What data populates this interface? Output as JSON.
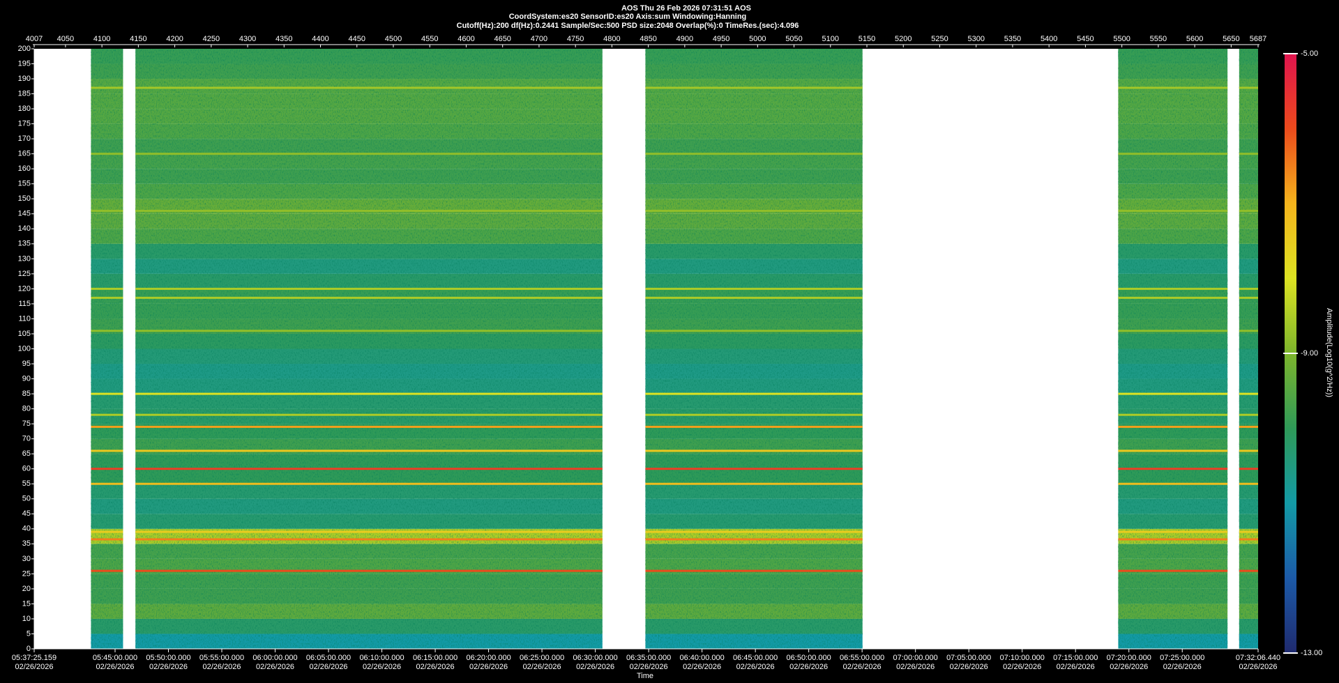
{
  "chart_data": {
    "type": "spectrogram",
    "title": "AOS  Thu 26 Feb 2026 07:31:51  AOS",
    "subtitle_lines": [
      "CoordSystem:es20    SensorID:es20    Axis:sum    Windowing:Hanning",
      "Cutoff(Hz):200      df(Hz):0.2441      Sample/Sec:500      PSD size:2048      Overlap(%):0      TimeRes.(sec):4.096"
    ],
    "x_label": "Time",
    "colorbar_label": "Amplitude(Log10(g^2/Hz))",
    "xlim": [
      4007,
      5687
    ],
    "xticks": [
      4007,
      4050,
      4100,
      4150,
      4200,
      4250,
      4300,
      4350,
      4400,
      4450,
      4500,
      4550,
      4600,
      4650,
      4700,
      4750,
      4800,
      4850,
      4900,
      4950,
      5000,
      5050,
      5100,
      5150,
      5200,
      5250,
      5300,
      5350,
      5400,
      5450,
      5500,
      5550,
      5600,
      5650,
      5687
    ],
    "time_ticks": [
      {
        "value": 4007,
        "label": "05:37:25.159"
      },
      {
        "value": 4118.05,
        "label": "05:45:00.000"
      },
      {
        "value": 4191.29,
        "label": "05:50:00.000"
      },
      {
        "value": 4264.53,
        "label": "05:55:00.000"
      },
      {
        "value": 4337.77,
        "label": "06:00:00.000"
      },
      {
        "value": 4411.01,
        "label": "06:05:00.000"
      },
      {
        "value": 4484.26,
        "label": "06:10:00.000"
      },
      {
        "value": 4557.5,
        "label": "06:15:00.000"
      },
      {
        "value": 4630.74,
        "label": "06:20:00.000"
      },
      {
        "value": 4703.98,
        "label": "06:25:00.000"
      },
      {
        "value": 4777.22,
        "label": "06:30:00.000"
      },
      {
        "value": 4850.47,
        "label": "06:35:00.000"
      },
      {
        "value": 4923.71,
        "label": "06:40:00.000"
      },
      {
        "value": 4996.95,
        "label": "06:45:00.000"
      },
      {
        "value": 5070.19,
        "label": "06:50:00.000"
      },
      {
        "value": 5143.43,
        "label": "06:55:00.000"
      },
      {
        "value": 5216.67,
        "label": "07:00:00.000"
      },
      {
        "value": 5289.92,
        "label": "07:05:00.000"
      },
      {
        "value": 5363.16,
        "label": "07:10:00.000"
      },
      {
        "value": 5436.4,
        "label": "07:15:00.000"
      },
      {
        "value": 5509.64,
        "label": "07:20:00.000"
      },
      {
        "value": 5582.88,
        "label": "07:25:00.000"
      },
      {
        "value": 5687,
        "label": "07:32:06.440"
      }
    ],
    "time_tick_date": "02/26/2026",
    "ylim": [
      0,
      200
    ],
    "yticks": [
      0,
      5,
      10,
      15,
      20,
      25,
      30,
      35,
      40,
      45,
      50,
      55,
      60,
      65,
      70,
      75,
      80,
      85,
      90,
      95,
      100,
      105,
      110,
      115,
      120,
      125,
      130,
      135,
      140,
      145,
      150,
      155,
      160,
      165,
      170,
      175,
      180,
      185,
      190,
      195,
      200
    ],
    "segments": [
      [
        4085,
        4129
      ],
      [
        4146,
        4787
      ],
      [
        4846,
        5144
      ],
      [
        5495,
        5645
      ],
      [
        5661,
        5687
      ]
    ],
    "band_edges": [
      0,
      5,
      10,
      15,
      20,
      25,
      30,
      35,
      40,
      45,
      50,
      55,
      60,
      65,
      70,
      75,
      80,
      85,
      90,
      95,
      100,
      105,
      110,
      115,
      120,
      125,
      130,
      135,
      140,
      145,
      150,
      155,
      160,
      165,
      170,
      175,
      180,
      185,
      190,
      195,
      200
    ],
    "band_amplitude": [
      -11.0,
      -10.2,
      -9.4,
      -9.8,
      -9.8,
      -9.6,
      -9.7,
      -8.5,
      -10.3,
      -10.5,
      -10.3,
      -10.0,
      -10.0,
      -9.8,
      -10.0,
      -10.2,
      -10.3,
      -10.5,
      -10.6,
      -10.4,
      -10.1,
      -9.8,
      -9.9,
      -9.9,
      -10.2,
      -10.5,
      -10.2,
      -9.6,
      -9.4,
      -9.3,
      -9.6,
      -9.8,
      -9.7,
      -9.8,
      -9.6,
      -9.5,
      -9.5,
      -9.5,
      -9.8,
      -9.9
    ],
    "lines": [
      {
        "frequency": 26,
        "amplitude": -6.0
      },
      {
        "frequency": 36.5,
        "amplitude": -6.5
      },
      {
        "frequency": 39,
        "amplitude": -7.5
      },
      {
        "frequency": 55,
        "amplitude": -7.2
      },
      {
        "frequency": 60,
        "amplitude": -5.8
      },
      {
        "frequency": 66,
        "amplitude": -7.4
      },
      {
        "frequency": 74,
        "amplitude": -6.8
      },
      {
        "frequency": 78,
        "amplitude": -8.5
      },
      {
        "frequency": 85,
        "amplitude": -8.0
      },
      {
        "frequency": 106,
        "amplitude": -8.8
      },
      {
        "frequency": 117,
        "amplitude": -8.5
      },
      {
        "frequency": 120,
        "amplitude": -8.5
      },
      {
        "frequency": 146,
        "amplitude": -8.8
      },
      {
        "frequency": 165,
        "amplitude": -8.8
      },
      {
        "frequency": 187,
        "amplitude": -8.6
      }
    ],
    "clim": [
      -13,
      -5
    ],
    "cticks": [
      {
        "value": -13,
        "label": "-13.00"
      },
      {
        "value": -9,
        "label": "-9.00"
      },
      {
        "value": -5,
        "label": "-5.00"
      }
    ],
    "colormap": [
      "#1f2a6e",
      "#1c5aa8",
      "#139aa6",
      "#2f9a58",
      "#7db52c",
      "#dde322",
      "#f5b41c",
      "#ec4a1c",
      "#e0144e"
    ]
  }
}
